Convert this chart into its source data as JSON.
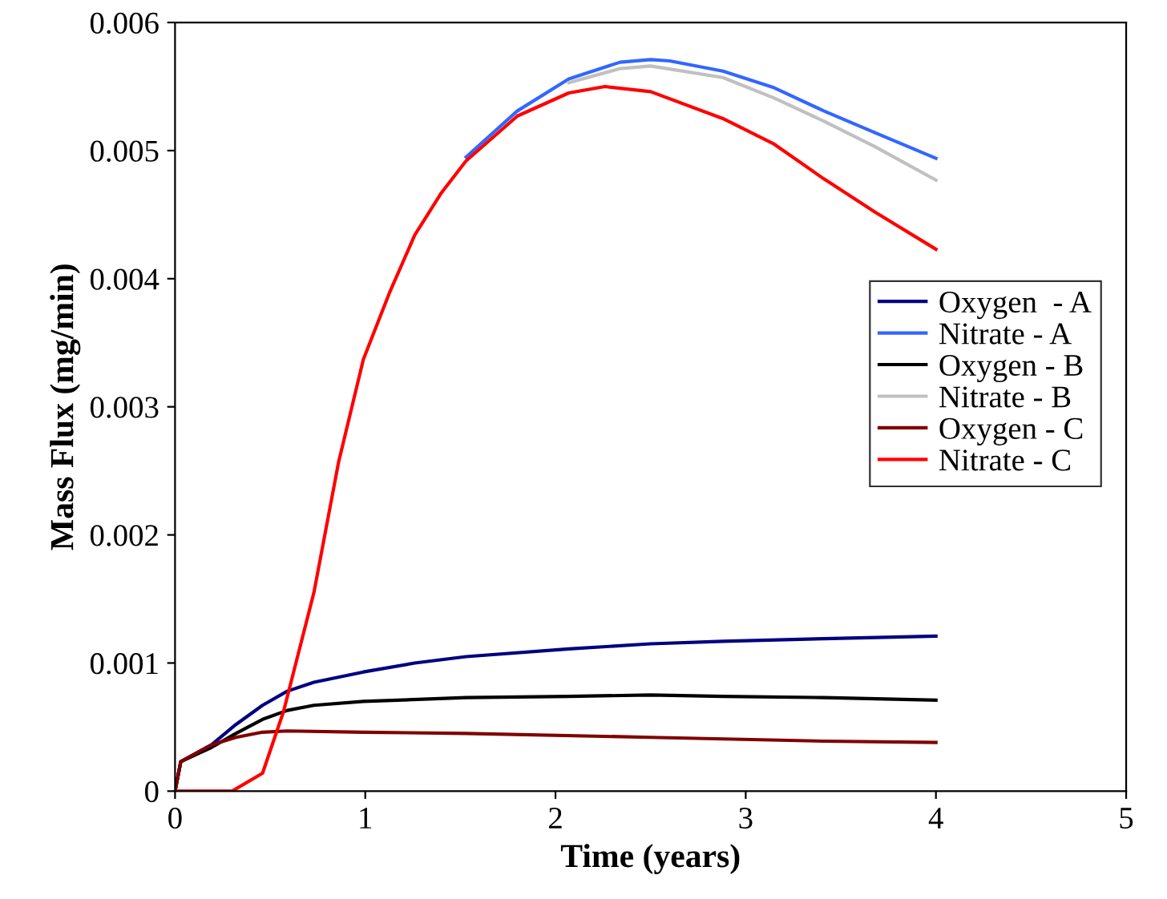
{
  "chart_data": {
    "type": "line",
    "xlabel": "Time (years)",
    "ylabel": "Mass Flux (mg/min)",
    "xlim": [
      0,
      5
    ],
    "xticks": [
      0,
      1,
      2,
      3,
      4,
      5
    ],
    "ylim": [
      0,
      0.006
    ],
    "yticks": [
      0,
      0.001,
      0.002,
      0.003,
      0.004,
      0.005,
      0.006
    ],
    "legend": "right",
    "grid": false,
    "marker": "none",
    "line_style": "solid",
    "series": [
      {
        "name": "Oxygen  - A",
        "color": "#000080",
        "x": [
          0,
          0.03,
          0.19,
          0.32,
          0.46,
          0.59,
          0.73,
          0.99,
          1.26,
          1.53,
          2.07,
          2.5,
          2.88,
          3.41,
          4
        ],
        "values": [
          0,
          0.00023,
          0.00036,
          0.00052,
          0.00067,
          0.00078,
          0.00085,
          0.00093,
          0.001,
          0.00105,
          0.00111,
          0.00115,
          0.00117,
          0.00119,
          0.00121
        ]
      },
      {
        "name": "Nitrate - A",
        "color": "#3366ff",
        "x": [
          1.53,
          1.8,
          2.07,
          2.34,
          2.5,
          2.6,
          2.88,
          3.15,
          3.41,
          3.68,
          4
        ],
        "values": [
          0.00495,
          0.00531,
          0.00556,
          0.00569,
          0.00571,
          0.0057,
          0.00562,
          0.00549,
          0.00531,
          0.00514,
          0.00494
        ]
      },
      {
        "name": "Oxygen - B",
        "color": "#000000",
        "x": [
          0,
          0.03,
          0.19,
          0.32,
          0.46,
          0.59,
          0.73,
          0.99,
          1.53,
          2.07,
          2.5,
          2.88,
          3.41,
          4
        ],
        "values": [
          0,
          0.00023,
          0.00034,
          0.00045,
          0.00056,
          0.00063,
          0.00067,
          0.0007,
          0.00073,
          0.00074,
          0.00075,
          0.00074,
          0.00073,
          0.00071
        ]
      },
      {
        "name": "Nitrate - B",
        "color": "#c0c0c0",
        "x": [
          2.07,
          2.34,
          2.5,
          2.88,
          3.15,
          3.41,
          3.68,
          4
        ],
        "values": [
          0.00553,
          0.00564,
          0.00566,
          0.00557,
          0.00541,
          0.00523,
          0.00503,
          0.00477
        ]
      },
      {
        "name": "Oxygen - C",
        "color": "#800000",
        "x": [
          0,
          0.03,
          0.19,
          0.32,
          0.46,
          0.59,
          0.99,
          1.53,
          2.5,
          3.41,
          4
        ],
        "values": [
          0,
          0.00023,
          0.00036,
          0.00042,
          0.00046,
          0.00047,
          0.00046,
          0.00045,
          0.00042,
          0.00039,
          0.00038
        ]
      },
      {
        "name": "Nitrate - C",
        "color": "#ff0000",
        "x": [
          0,
          0.2,
          0.3,
          0.46,
          0.57,
          0.73,
          0.86,
          0.99,
          1.13,
          1.26,
          1.4,
          1.53,
          1.8,
          2.07,
          2.26,
          2.5,
          2.88,
          3.15,
          3.41,
          3.68,
          4
        ],
        "values": [
          0,
          0,
          0,
          0.00014,
          0.00062,
          0.00155,
          0.00257,
          0.00337,
          0.0039,
          0.00434,
          0.00467,
          0.00492,
          0.00527,
          0.00545,
          0.0055,
          0.00546,
          0.00525,
          0.00505,
          0.00478,
          0.00452,
          0.00423
        ]
      }
    ]
  }
}
